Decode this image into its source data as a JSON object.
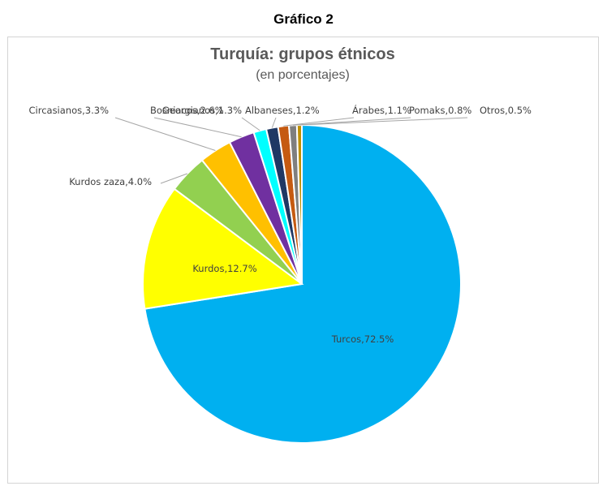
{
  "page": {
    "heading": "Gráfico 2"
  },
  "chart_data": {
    "type": "pie",
    "title": "Turquía: grupos étnicos",
    "subtitle": "(en porcentajes)",
    "start_angle_deg": 0,
    "direction": "clockwise",
    "slices": [
      {
        "label": "Turcos",
        "value": 72.5,
        "text": "Turcos,72.5%",
        "color": "#00B0F0"
      },
      {
        "label": "Kurdos",
        "value": 12.7,
        "text": "Kurdos,12.7%",
        "color": "#FFFF00"
      },
      {
        "label": "Kurdos zaza",
        "value": 4.0,
        "text": "Kurdos zaza,4.0%",
        "color": "#92D050"
      },
      {
        "label": "Circasianos",
        "value": 3.3,
        "text": "Circasianos,3.3%",
        "color": "#FFC000"
      },
      {
        "label": "Bosniacos",
        "value": 2.6,
        "text": "Bosniacos,2.6%",
        "color": "#7030A0"
      },
      {
        "label": "Georgianos",
        "value": 1.3,
        "text": "Georgianos,1.3%",
        "color": "#00FFFF"
      },
      {
        "label": "Albaneses",
        "value": 1.2,
        "text": "Albaneses,1.2%",
        "color": "#1F3864"
      },
      {
        "label": "Árabes",
        "value": 1.1,
        "text": "Árabes,1.1%",
        "color": "#C55A11"
      },
      {
        "label": "Pomaks",
        "value": 0.8,
        "text": "Pomaks,0.8%",
        "color": "#7F7F7F"
      },
      {
        "label": "Otros",
        "value": 0.5,
        "text": "Otros,0.5%",
        "color": "#BF8F00"
      }
    ]
  }
}
